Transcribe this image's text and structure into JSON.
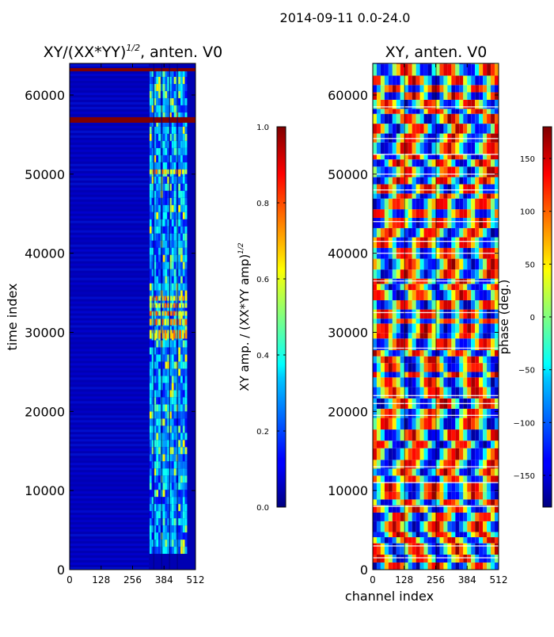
{
  "suptitle": "2014-09-11 0.0-24.0",
  "chart_data": [
    {
      "id": "amp",
      "type": "heatmap",
      "title": "XY/(XX*YY)",
      "title_exponent": "1/2",
      "title_suffix": ", anten. V0",
      "xlabel": "",
      "ylabel": "time index",
      "xlim": [
        0,
        512
      ],
      "ylim": [
        0,
        64000
      ],
      "xticks": [
        "0",
        "128",
        "256",
        "384",
        "512"
      ],
      "xtick_values": [
        0,
        128,
        256,
        384,
        512
      ],
      "yticks": [
        "0",
        "10000",
        "20000",
        "30000",
        "40000",
        "50000",
        "60000"
      ],
      "ytick_values": [
        0,
        10000,
        20000,
        30000,
        40000,
        50000,
        60000
      ],
      "colorbar": {
        "label": "XY amp. / (XX*YY amp)",
        "label_exponent": "1/2",
        "range": [
          0.0,
          1.0
        ],
        "ticks": [
          "0.0",
          "0.2",
          "0.4",
          "0.6",
          "0.8",
          "1.0"
        ],
        "tick_values": [
          0.0,
          0.2,
          0.4,
          0.6,
          0.8,
          1.0
        ],
        "colormap": "jet"
      },
      "description_features": {
        "background_level": 0.05,
        "bright_channel_range": [
          325,
          470
        ],
        "saturated_rows": [
          [
            56500,
            57200
          ],
          [
            63000,
            63400
          ]
        ],
        "bright_row_bands": [
          [
            29200,
            30300
          ],
          [
            30900,
            31700
          ],
          [
            32100,
            32700
          ],
          [
            33100,
            33700
          ],
          [
            34000,
            34600
          ],
          [
            50000,
            50600
          ]
        ]
      }
    },
    {
      "id": "phase",
      "type": "heatmap",
      "title": "XY, anten. V0",
      "xlabel": "channel index",
      "ylabel": "",
      "xlim": [
        0,
        512
      ],
      "ylim": [
        0,
        64000
      ],
      "xticks": [
        "0",
        "128",
        "256",
        "384",
        "512"
      ],
      "xtick_values": [
        0,
        128,
        256,
        384,
        512
      ],
      "yticks": [
        "0",
        "10000",
        "20000",
        "30000",
        "40000",
        "50000",
        "60000"
      ],
      "ytick_values": [
        0,
        10000,
        20000,
        30000,
        40000,
        50000,
        60000
      ],
      "colorbar": {
        "label": "phase (deg.)",
        "range": [
          -180,
          180
        ],
        "ticks": [
          "−150",
          "−100",
          "−50",
          "0",
          "50",
          "100",
          "150"
        ],
        "tick_values": [
          -150,
          -100,
          -50,
          0,
          50,
          100,
          150
        ],
        "colormap": "jet"
      }
    }
  ],
  "colors": {
    "jet_dark_blue": "#00007f",
    "jet_dark_red": "#7f0000"
  }
}
